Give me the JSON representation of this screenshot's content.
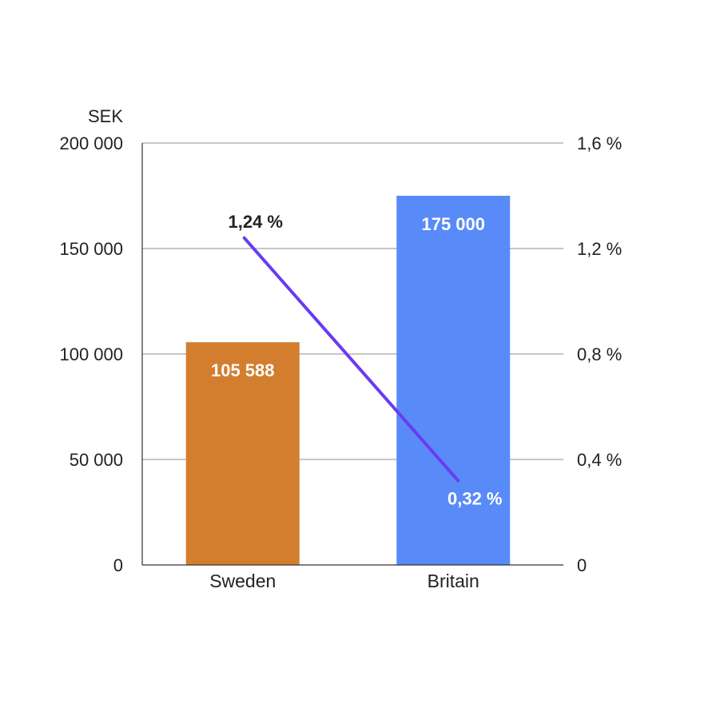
{
  "chart_data": {
    "type": "bar",
    "categories": [
      "Sweden",
      "Britain"
    ],
    "series": [
      {
        "type": "bar",
        "axis": "left",
        "values": [
          105588,
          175000
        ],
        "value_labels": [
          "105 588",
          "175 000"
        ],
        "colors": [
          "#D27E2E",
          "#588BF7"
        ]
      },
      {
        "type": "line",
        "axis": "right",
        "values": [
          1.24,
          0.32
        ],
        "value_labels": [
          "1,24 %",
          "0,32 %"
        ],
        "color": "#6A3BF3"
      }
    ],
    "y_left": {
      "unit": "SEK",
      "range": [
        0,
        200000
      ],
      "ticks": [
        0,
        50000,
        100000,
        150000,
        200000
      ],
      "tick_labels": [
        "0",
        "50 000",
        "100 000",
        "150 000",
        "200 000"
      ]
    },
    "y_right": {
      "range": [
        0,
        1.6
      ],
      "ticks": [
        0,
        0.4,
        0.8,
        1.2,
        1.6
      ],
      "tick_labels": [
        "0",
        "0,4 %",
        "0,8 %",
        "1,2 %",
        "1,6 %"
      ]
    },
    "grid": true,
    "title": "",
    "xlabel": ""
  }
}
